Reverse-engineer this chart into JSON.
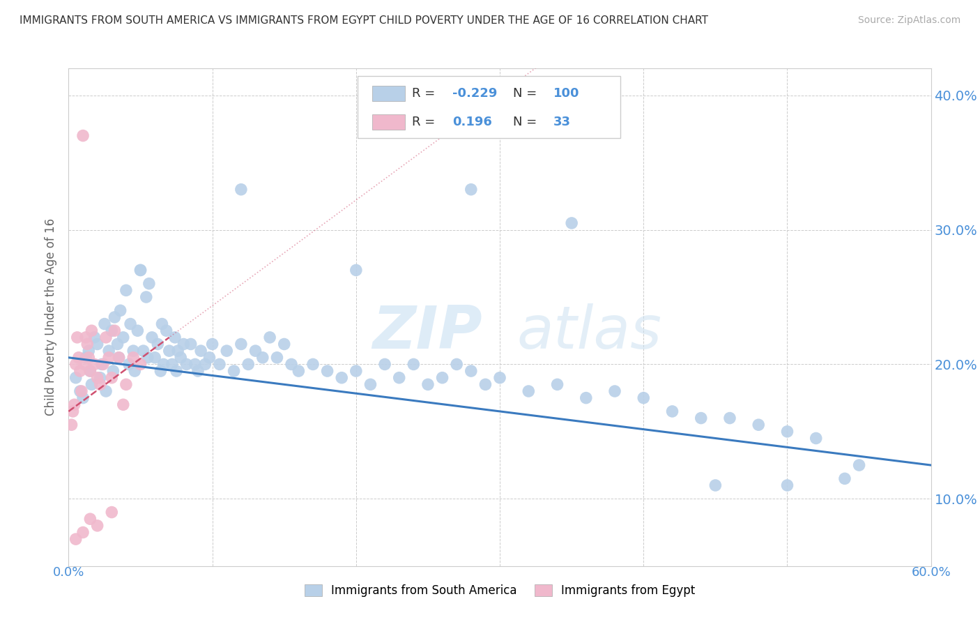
{
  "title": "IMMIGRANTS FROM SOUTH AMERICA VS IMMIGRANTS FROM EGYPT CHILD POVERTY UNDER THE AGE OF 16 CORRELATION CHART",
  "source": "Source: ZipAtlas.com",
  "ylabel": "Child Poverty Under the Age of 16",
  "legend_label_blue": "Immigrants from South America",
  "legend_label_pink": "Immigrants from Egypt",
  "R_blue": -0.229,
  "N_blue": 100,
  "R_pink": 0.196,
  "N_pink": 33,
  "watermark_zip": "ZIP",
  "watermark_atlas": "atlas",
  "blue_color": "#b8d0e8",
  "blue_line_color": "#3a7abf",
  "pink_color": "#f0b8cc",
  "pink_line_color": "#d05070",
  "blue_scatter": [
    [
      0.5,
      19.0
    ],
    [
      0.8,
      18.0
    ],
    [
      1.0,
      17.5
    ],
    [
      1.2,
      20.5
    ],
    [
      1.4,
      21.0
    ],
    [
      1.5,
      19.5
    ],
    [
      1.6,
      18.5
    ],
    [
      1.8,
      22.0
    ],
    [
      2.0,
      21.5
    ],
    [
      2.2,
      19.0
    ],
    [
      2.3,
      20.0
    ],
    [
      2.5,
      23.0
    ],
    [
      2.6,
      18.0
    ],
    [
      2.8,
      21.0
    ],
    [
      3.0,
      22.5
    ],
    [
      3.1,
      19.5
    ],
    [
      3.2,
      23.5
    ],
    [
      3.4,
      21.5
    ],
    [
      3.5,
      20.5
    ],
    [
      3.6,
      24.0
    ],
    [
      3.8,
      22.0
    ],
    [
      4.0,
      25.5
    ],
    [
      4.2,
      20.0
    ],
    [
      4.3,
      23.0
    ],
    [
      4.5,
      21.0
    ],
    [
      4.6,
      19.5
    ],
    [
      4.8,
      22.5
    ],
    [
      5.0,
      27.0
    ],
    [
      5.2,
      21.0
    ],
    [
      5.4,
      25.0
    ],
    [
      5.5,
      20.5
    ],
    [
      5.6,
      26.0
    ],
    [
      5.8,
      22.0
    ],
    [
      6.0,
      20.5
    ],
    [
      6.2,
      21.5
    ],
    [
      6.4,
      19.5
    ],
    [
      6.5,
      23.0
    ],
    [
      6.6,
      20.0
    ],
    [
      6.8,
      22.5
    ],
    [
      7.0,
      21.0
    ],
    [
      7.2,
      20.0
    ],
    [
      7.4,
      22.0
    ],
    [
      7.5,
      19.5
    ],
    [
      7.6,
      21.0
    ],
    [
      7.8,
      20.5
    ],
    [
      8.0,
      21.5
    ],
    [
      8.2,
      20.0
    ],
    [
      8.5,
      21.5
    ],
    [
      8.8,
      20.0
    ],
    [
      9.0,
      19.5
    ],
    [
      9.2,
      21.0
    ],
    [
      9.5,
      20.0
    ],
    [
      9.8,
      20.5
    ],
    [
      10.0,
      21.5
    ],
    [
      10.5,
      20.0
    ],
    [
      11.0,
      21.0
    ],
    [
      11.5,
      19.5
    ],
    [
      12.0,
      21.5
    ],
    [
      12.5,
      20.0
    ],
    [
      13.0,
      21.0
    ],
    [
      13.5,
      20.5
    ],
    [
      14.0,
      22.0
    ],
    [
      14.5,
      20.5
    ],
    [
      15.0,
      21.5
    ],
    [
      15.5,
      20.0
    ],
    [
      16.0,
      19.5
    ],
    [
      17.0,
      20.0
    ],
    [
      18.0,
      19.5
    ],
    [
      19.0,
      19.0
    ],
    [
      20.0,
      19.5
    ],
    [
      21.0,
      18.5
    ],
    [
      22.0,
      20.0
    ],
    [
      23.0,
      19.0
    ],
    [
      24.0,
      20.0
    ],
    [
      25.0,
      18.5
    ],
    [
      26.0,
      19.0
    ],
    [
      27.0,
      20.0
    ],
    [
      28.0,
      19.5
    ],
    [
      29.0,
      18.5
    ],
    [
      30.0,
      19.0
    ],
    [
      32.0,
      18.0
    ],
    [
      34.0,
      18.5
    ],
    [
      36.0,
      17.5
    ],
    [
      38.0,
      18.0
    ],
    [
      40.0,
      17.5
    ],
    [
      42.0,
      16.5
    ],
    [
      44.0,
      16.0
    ],
    [
      46.0,
      16.0
    ],
    [
      48.0,
      15.5
    ],
    [
      50.0,
      15.0
    ],
    [
      52.0,
      14.5
    ],
    [
      50.0,
      11.0
    ],
    [
      54.0,
      11.5
    ],
    [
      45.0,
      11.0
    ],
    [
      55.0,
      12.5
    ],
    [
      28.0,
      33.0
    ],
    [
      35.0,
      30.5
    ],
    [
      12.0,
      33.0
    ],
    [
      20.0,
      27.0
    ],
    [
      5.0,
      27.0
    ]
  ],
  "pink_scatter": [
    [
      0.2,
      15.5
    ],
    [
      0.3,
      16.5
    ],
    [
      0.4,
      17.0
    ],
    [
      0.5,
      20.0
    ],
    [
      0.6,
      22.0
    ],
    [
      0.7,
      20.5
    ],
    [
      0.8,
      19.5
    ],
    [
      0.9,
      18.0
    ],
    [
      1.0,
      37.0
    ],
    [
      1.1,
      20.0
    ],
    [
      1.2,
      22.0
    ],
    [
      1.3,
      21.5
    ],
    [
      1.4,
      20.5
    ],
    [
      1.5,
      19.5
    ],
    [
      1.6,
      22.5
    ],
    [
      1.8,
      20.0
    ],
    [
      2.0,
      19.0
    ],
    [
      2.2,
      18.5
    ],
    [
      2.4,
      20.0
    ],
    [
      2.6,
      22.0
    ],
    [
      2.8,
      20.5
    ],
    [
      3.0,
      19.0
    ],
    [
      3.2,
      22.5
    ],
    [
      3.5,
      20.5
    ],
    [
      3.8,
      17.0
    ],
    [
      4.0,
      18.5
    ],
    [
      4.5,
      20.5
    ],
    [
      5.0,
      20.0
    ],
    [
      0.5,
      7.0
    ],
    [
      1.0,
      7.5
    ],
    [
      1.5,
      8.5
    ],
    [
      2.0,
      8.0
    ],
    [
      3.0,
      9.0
    ]
  ],
  "xlim": [
    0,
    60
  ],
  "ylim": [
    5,
    42
  ],
  "xgrid": [
    0,
    10,
    20,
    30,
    40,
    50,
    60
  ],
  "ygrid_vals": [
    10,
    20,
    30,
    40
  ],
  "blue_trend_x": [
    0,
    60
  ],
  "blue_trend_y": [
    20.5,
    12.5
  ],
  "pink_trend_x": [
    0,
    7
  ],
  "pink_trend_y": [
    16.5,
    22.0
  ],
  "fig_width": 14.06,
  "fig_height": 8.92,
  "dpi": 100
}
